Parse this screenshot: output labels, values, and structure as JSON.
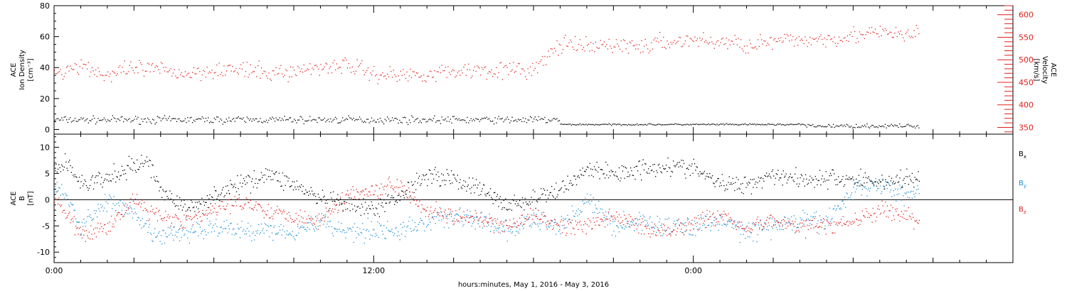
{
  "xaxis": {
    "title": "hours:minutes, May  1, 2016 - May  3, 2016",
    "tick_labels": [
      {
        "hour": 0,
        "label": "0:00"
      },
      {
        "hour": 12,
        "label": "12:00"
      },
      {
        "hour": 24,
        "label": "0:00"
      }
    ],
    "range_hours": [
      0,
      36
    ],
    "minor_step_hours": 1,
    "labeled_step_hours": 12,
    "medium_step_hours": 3
  },
  "colors": {
    "black": "#000000",
    "red": "#e0201c",
    "blue": "#1d8fd6",
    "axis": "#000000"
  },
  "chart_data": [
    {
      "type": "scatter",
      "panel": "top",
      "left_axis": {
        "label_lines": [
          "ACE",
          "Ion Density",
          "[cm⁻³]"
        ],
        "ylim": [
          -3,
          80
        ],
        "ticks": [
          0,
          20,
          40,
          60,
          80
        ],
        "minor_step": 5
      },
      "right_axis": {
        "label_lines": [
          "ACE",
          "Velocity",
          "[km/s]"
        ],
        "ylim": [
          335,
          620
        ],
        "ticks": [
          350,
          400,
          450,
          500,
          550,
          600
        ],
        "minor_step": 10,
        "color": "#e0201c"
      },
      "series": [
        {
          "axis": "left",
          "color": "#000000",
          "segments": [
            {
              "t0": 0.0,
              "t1": 19.0,
              "center": 6.5,
              "spread": 1.7,
              "density": 22
            },
            {
              "t0": 19.0,
              "t1": 28.2,
              "center": 3.5,
              "spread": 0.4,
              "density": 22
            },
            {
              "t0": 28.2,
              "t1": 32.5,
              "center": 2.5,
              "spread": 0.9,
              "density": 22
            }
          ]
        },
        {
          "axis": "right",
          "color": "#e0201c",
          "anchors": [
            [
              0,
              470
            ],
            [
              1,
              490
            ],
            [
              2,
              465
            ],
            [
              3,
              480
            ],
            [
              4,
              478
            ],
            [
              5,
              470
            ],
            [
              6,
              480
            ],
            [
              7,
              478
            ],
            [
              8,
              470
            ],
            [
              9,
              475
            ],
            [
              10,
              485
            ],
            [
              11,
              490
            ],
            [
              12,
              470
            ],
            [
              13,
              466
            ],
            [
              14,
              470
            ],
            [
              15,
              475
            ],
            [
              16,
              480
            ],
            [
              17,
              478
            ],
            [
              18,
              478
            ],
            [
              19,
              535
            ],
            [
              20,
              528
            ],
            [
              21,
              535
            ],
            [
              22,
              530
            ],
            [
              23,
              540
            ],
            [
              24,
              545
            ],
            [
              25,
              540
            ],
            [
              26,
              535
            ],
            [
              27,
              540
            ],
            [
              28,
              545
            ],
            [
              29,
              548
            ],
            [
              30,
              555
            ],
            [
              31,
              560
            ],
            [
              32,
              555
            ],
            [
              32.5,
              558
            ]
          ],
          "spread": 14,
          "density": 22
        }
      ]
    },
    {
      "type": "scatter",
      "panel": "bottom",
      "left_axis": {
        "label_lines": [
          "ACE",
          "B",
          "[nT]"
        ],
        "ylim": [
          -12,
          12.5
        ],
        "ticks": [
          -10,
          -5,
          0,
          5,
          10
        ],
        "minor_step": 1,
        "zero_line": true
      },
      "series": [
        {
          "name": "B",
          "sub": "x",
          "color": "#000000",
          "anchors": [
            [
              0,
              6
            ],
            [
              0.5,
              7
            ],
            [
              1,
              3
            ],
            [
              2,
              4
            ],
            [
              3,
              6.5
            ],
            [
              3.5,
              7.5
            ],
            [
              4,
              2
            ],
            [
              5,
              -2
            ],
            [
              6,
              1
            ],
            [
              7,
              3
            ],
            [
              8,
              5
            ],
            [
              9,
              3
            ],
            [
              10,
              0
            ],
            [
              11,
              -1
            ],
            [
              12,
              -2
            ],
            [
              13,
              1
            ],
            [
              14,
              5
            ],
            [
              15,
              4
            ],
            [
              16,
              2
            ],
            [
              17,
              -1
            ],
            [
              18,
              0
            ],
            [
              19,
              2
            ],
            [
              20,
              6
            ],
            [
              21,
              5
            ],
            [
              22,
              6
            ],
            [
              23,
              6.5
            ],
            [
              24,
              6
            ],
            [
              25,
              3
            ],
            [
              26,
              3
            ],
            [
              27,
              5
            ],
            [
              28,
              4
            ],
            [
              29,
              4
            ],
            [
              30,
              4
            ],
            [
              31,
              3.5
            ],
            [
              32,
              4
            ],
            [
              32.5,
              4
            ]
          ],
          "spread": 1.3,
          "density": 30
        },
        {
          "name": "B",
          "sub": "y",
          "color": "#1d8fd6",
          "anchors": [
            [
              0,
              3
            ],
            [
              0.5,
              0
            ],
            [
              1,
              -5
            ],
            [
              2,
              0
            ],
            [
              3,
              -3
            ],
            [
              3.5,
              -6
            ],
            [
              4,
              -7
            ],
            [
              5,
              -6
            ],
            [
              6,
              -5
            ],
            [
              7,
              -6
            ],
            [
              8,
              -5.5
            ],
            [
              9,
              -6
            ],
            [
              10,
              -4
            ],
            [
              11,
              -6
            ],
            [
              12,
              -5.5
            ],
            [
              13,
              -6
            ],
            [
              14,
              -4
            ],
            [
              15,
              -3
            ],
            [
              16,
              -4
            ],
            [
              17,
              -6
            ],
            [
              18,
              -4
            ],
            [
              19,
              -5
            ],
            [
              20,
              0
            ],
            [
              21,
              -5
            ],
            [
              22,
              -4
            ],
            [
              23,
              -5
            ],
            [
              24,
              -5
            ],
            [
              25,
              -4
            ],
            [
              26,
              -6
            ],
            [
              27,
              -5
            ],
            [
              28,
              -4
            ],
            [
              29,
              -4
            ],
            [
              30,
              2
            ],
            [
              31,
              3
            ],
            [
              32,
              1
            ],
            [
              32.5,
              2
            ]
          ],
          "spread": 1.4,
          "density": 30
        },
        {
          "name": "B",
          "sub": "z",
          "color": "#e0201c",
          "anchors": [
            [
              0,
              1
            ],
            [
              0.5,
              -3
            ],
            [
              1,
              -7
            ],
            [
              2,
              -5
            ],
            [
              3,
              0
            ],
            [
              3.5,
              -2
            ],
            [
              4,
              -3
            ],
            [
              5,
              -4
            ],
            [
              6,
              -2
            ],
            [
              7,
              0
            ],
            [
              8,
              -2
            ],
            [
              9,
              -3
            ],
            [
              10,
              -4
            ],
            [
              11,
              1
            ],
            [
              12,
              2
            ],
            [
              13,
              3
            ],
            [
              14,
              -2
            ],
            [
              15,
              -3
            ],
            [
              16,
              -4
            ],
            [
              17,
              -5
            ],
            [
              18,
              -3
            ],
            [
              19,
              -5
            ],
            [
              20,
              -5
            ],
            [
              21,
              -3
            ],
            [
              22,
              -5
            ],
            [
              23,
              -6
            ],
            [
              24,
              -4
            ],
            [
              25,
              -3
            ],
            [
              26,
              -5
            ],
            [
              27,
              -4
            ],
            [
              28,
              -5
            ],
            [
              29,
              -5
            ],
            [
              30,
              -4
            ],
            [
              31,
              -2
            ],
            [
              32,
              -3
            ],
            [
              32.5,
              -4
            ]
          ],
          "spread": 1.2,
          "density": 30
        }
      ]
    }
  ]
}
